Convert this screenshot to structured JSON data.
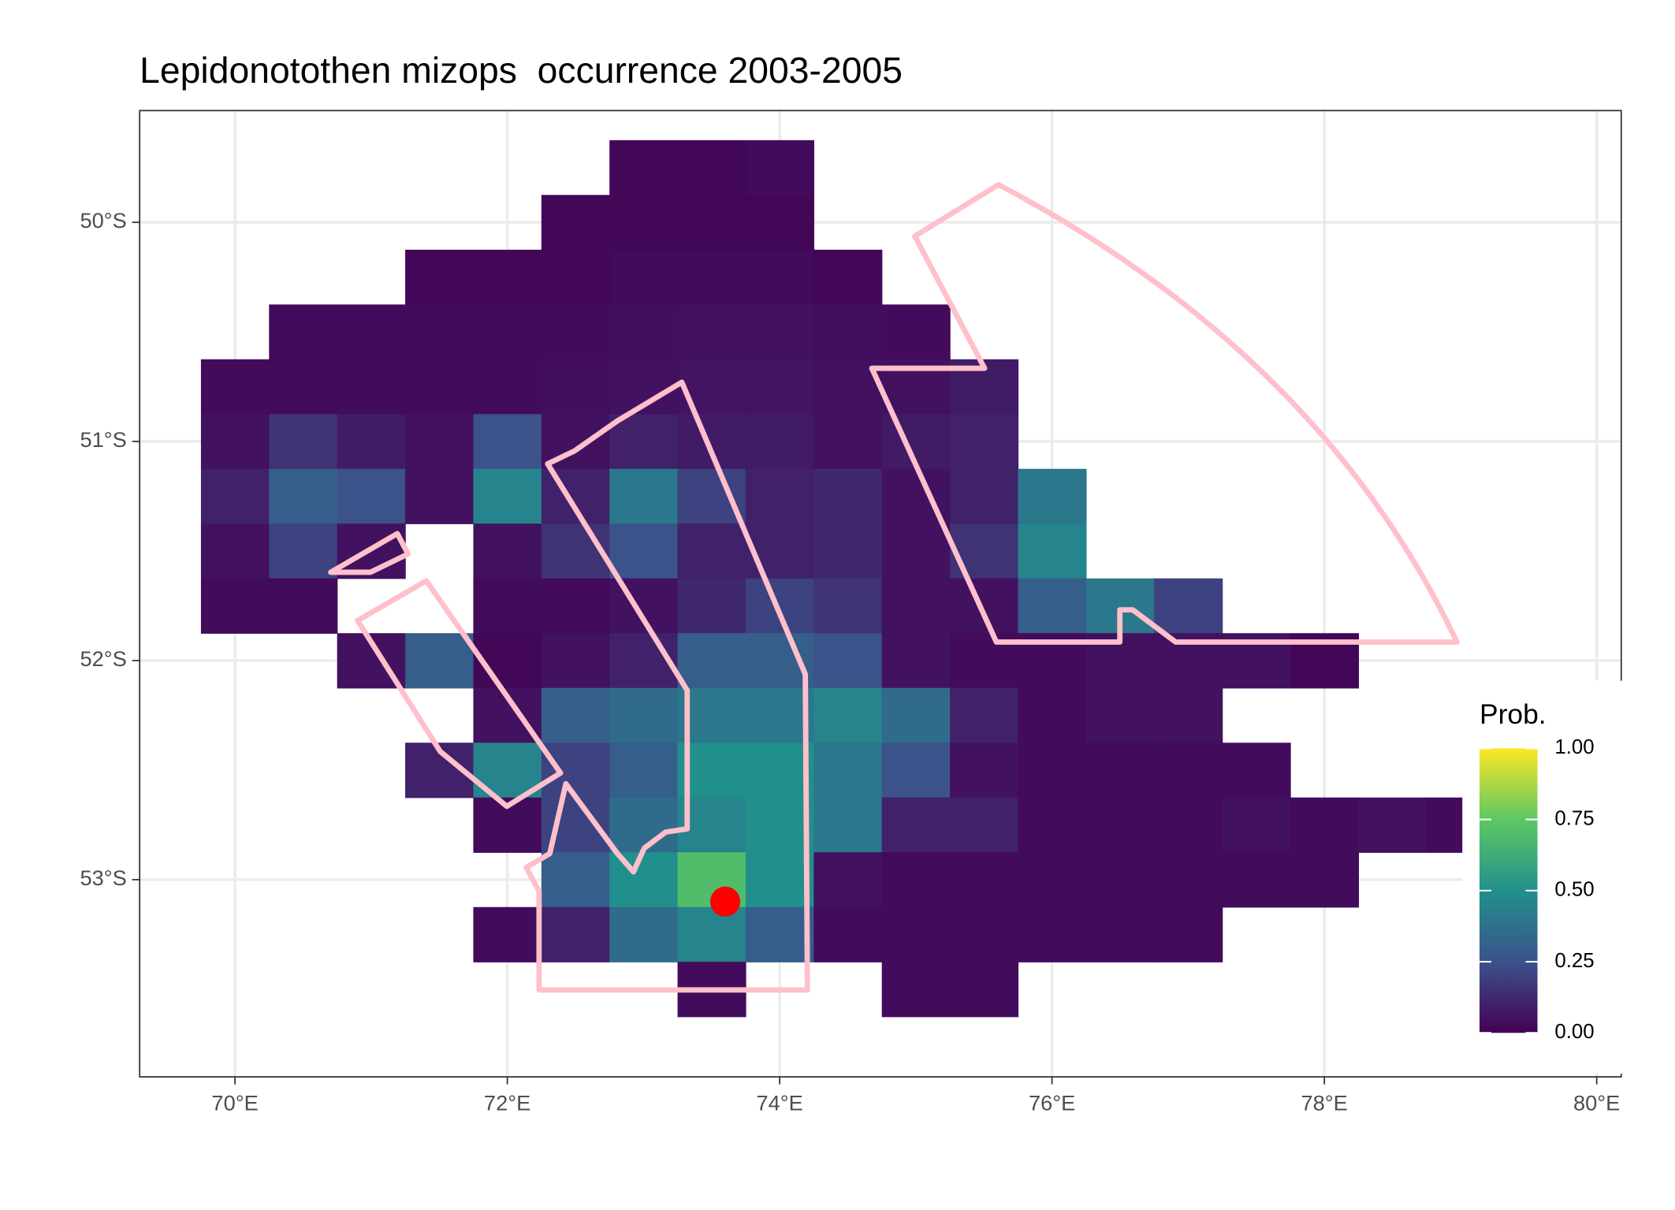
{
  "chart_data": {
    "type": "raster",
    "title": "Lepidonotothen mizops  occurrence 2003-2005",
    "x": [
      70.0,
      70.5,
      71.0,
      71.5,
      72.0,
      72.5,
      73.0,
      73.5,
      74.0,
      74.5,
      75.0,
      75.5,
      76.0,
      76.5,
      77.0,
      77.5,
      78.0,
      78.5,
      79.0,
      79.5
    ],
    "y": [
      -49.75,
      -50.0,
      -50.25,
      -50.5,
      -50.75,
      -51.0,
      -51.25,
      -51.5,
      -51.75,
      -52.0,
      -52.25,
      -52.5,
      -52.75,
      -53.0,
      -53.25,
      -53.5
    ],
    "values": [
      [
        null,
        null,
        null,
        null,
        null,
        null,
        0.02,
        0.02,
        0.03,
        null,
        null,
        null,
        null,
        null,
        null,
        null,
        null,
        null,
        null,
        null
      ],
      [
        null,
        null,
        null,
        null,
        null,
        0.02,
        0.02,
        0.02,
        0.02,
        null,
        null,
        null,
        null,
        null,
        null,
        null,
        null,
        null,
        null,
        null
      ],
      [
        null,
        null,
        null,
        0.02,
        0.02,
        0.02,
        0.03,
        0.03,
        0.03,
        0.02,
        null,
        null,
        null,
        null,
        null,
        null,
        null,
        null,
        null,
        null
      ],
      [
        null,
        0.03,
        0.03,
        0.03,
        0.03,
        0.03,
        0.04,
        0.05,
        0.05,
        0.04,
        0.03,
        null,
        null,
        null,
        null,
        null,
        null,
        null,
        null,
        null
      ],
      [
        0.03,
        0.03,
        0.03,
        0.03,
        0.03,
        0.04,
        0.05,
        0.06,
        0.06,
        0.05,
        0.05,
        0.08,
        null,
        null,
        null,
        null,
        null,
        null,
        null,
        null
      ],
      [
        0.05,
        0.15,
        0.08,
        0.05,
        0.25,
        0.05,
        0.1,
        0.08,
        0.08,
        0.05,
        0.08,
        0.1,
        null,
        null,
        null,
        null,
        null,
        null,
        null,
        null
      ],
      [
        0.1,
        0.3,
        0.25,
        0.05,
        0.45,
        0.1,
        0.4,
        0.2,
        0.1,
        0.12,
        0.05,
        0.1,
        0.4,
        null,
        null,
        null,
        null,
        null,
        null,
        null
      ],
      [
        0.05,
        0.2,
        0.05,
        null,
        0.05,
        0.15,
        0.25,
        0.1,
        0.1,
        0.12,
        0.05,
        0.15,
        0.45,
        null,
        null,
        null,
        null,
        null,
        null,
        null
      ],
      [
        0.03,
        0.03,
        null,
        null,
        0.03,
        0.03,
        0.05,
        0.12,
        0.2,
        0.15,
        0.05,
        0.05,
        0.3,
        0.4,
        0.2,
        null,
        null,
        null,
        null,
        null
      ],
      [
        null,
        null,
        0.05,
        0.3,
        0.02,
        0.05,
        0.1,
        0.3,
        0.3,
        0.25,
        0.05,
        0.03,
        0.03,
        0.05,
        0.05,
        0.05,
        0.02,
        null,
        null,
        null
      ],
      [
        null,
        null,
        null,
        null,
        0.05,
        0.3,
        0.35,
        0.4,
        0.4,
        0.45,
        0.35,
        0.1,
        0.03,
        0.05,
        0.05,
        null,
        null,
        null,
        null,
        null
      ],
      [
        null,
        null,
        null,
        0.1,
        0.45,
        0.2,
        0.3,
        0.5,
        0.5,
        0.4,
        0.25,
        0.05,
        0.03,
        0.03,
        0.03,
        0.03,
        null,
        null,
        null,
        null
      ],
      [
        null,
        null,
        null,
        null,
        0.03,
        0.2,
        0.35,
        0.45,
        0.5,
        0.4,
        0.1,
        0.1,
        0.03,
        0.03,
        0.03,
        0.05,
        0.03,
        0.05,
        0.03,
        null
      ],
      [
        null,
        null,
        null,
        null,
        null,
        0.3,
        0.5,
        0.7,
        0.5,
        0.05,
        0.03,
        0.03,
        0.03,
        0.03,
        0.03,
        0.03,
        0.03,
        null,
        null,
        null
      ],
      [
        null,
        null,
        null,
        null,
        0.03,
        0.1,
        0.35,
        0.45,
        0.3,
        0.03,
        0.03,
        0.03,
        0.03,
        0.03,
        0.03,
        null,
        null,
        null,
        null,
        null
      ],
      [
        null,
        null,
        null,
        null,
        null,
        null,
        null,
        0.03,
        null,
        null,
        0.03,
        0.03,
        null,
        null,
        null,
        null,
        null,
        null,
        null,
        null
      ]
    ],
    "xlim": [
      69.3,
      80.18
    ],
    "ylim": [
      -53.9,
      -49.49
    ],
    "xticks": [
      {
        "value": 70,
        "label": "70°E"
      },
      {
        "value": 72,
        "label": "72°E"
      },
      {
        "value": 74,
        "label": "74°E"
      },
      {
        "value": 76,
        "label": "76°E"
      },
      {
        "value": 78,
        "label": "78°E"
      },
      {
        "value": 80,
        "label": "80°E"
      }
    ],
    "yticks": [
      {
        "value": -50,
        "label": "50°S"
      },
      {
        "value": -51,
        "label": "51°S"
      },
      {
        "value": -52,
        "label": "52°S"
      },
      {
        "value": -53,
        "label": "53°S"
      }
    ],
    "grid": true,
    "legend": {
      "title": "Prob.",
      "limits": [
        0,
        1
      ],
      "ticks": [
        {
          "value": 0,
          "label": "0.00"
        },
        {
          "value": 0.25,
          "label": "0.25"
        },
        {
          "value": 0.5,
          "label": "0.50"
        },
        {
          "value": 0.75,
          "label": "0.75"
        },
        {
          "value": 1,
          "label": "1.00"
        }
      ]
    },
    "point": {
      "x": 73.6,
      "y": -53.1,
      "color": "#ff0000"
    },
    "outline_color": "#ffc0cb"
  }
}
